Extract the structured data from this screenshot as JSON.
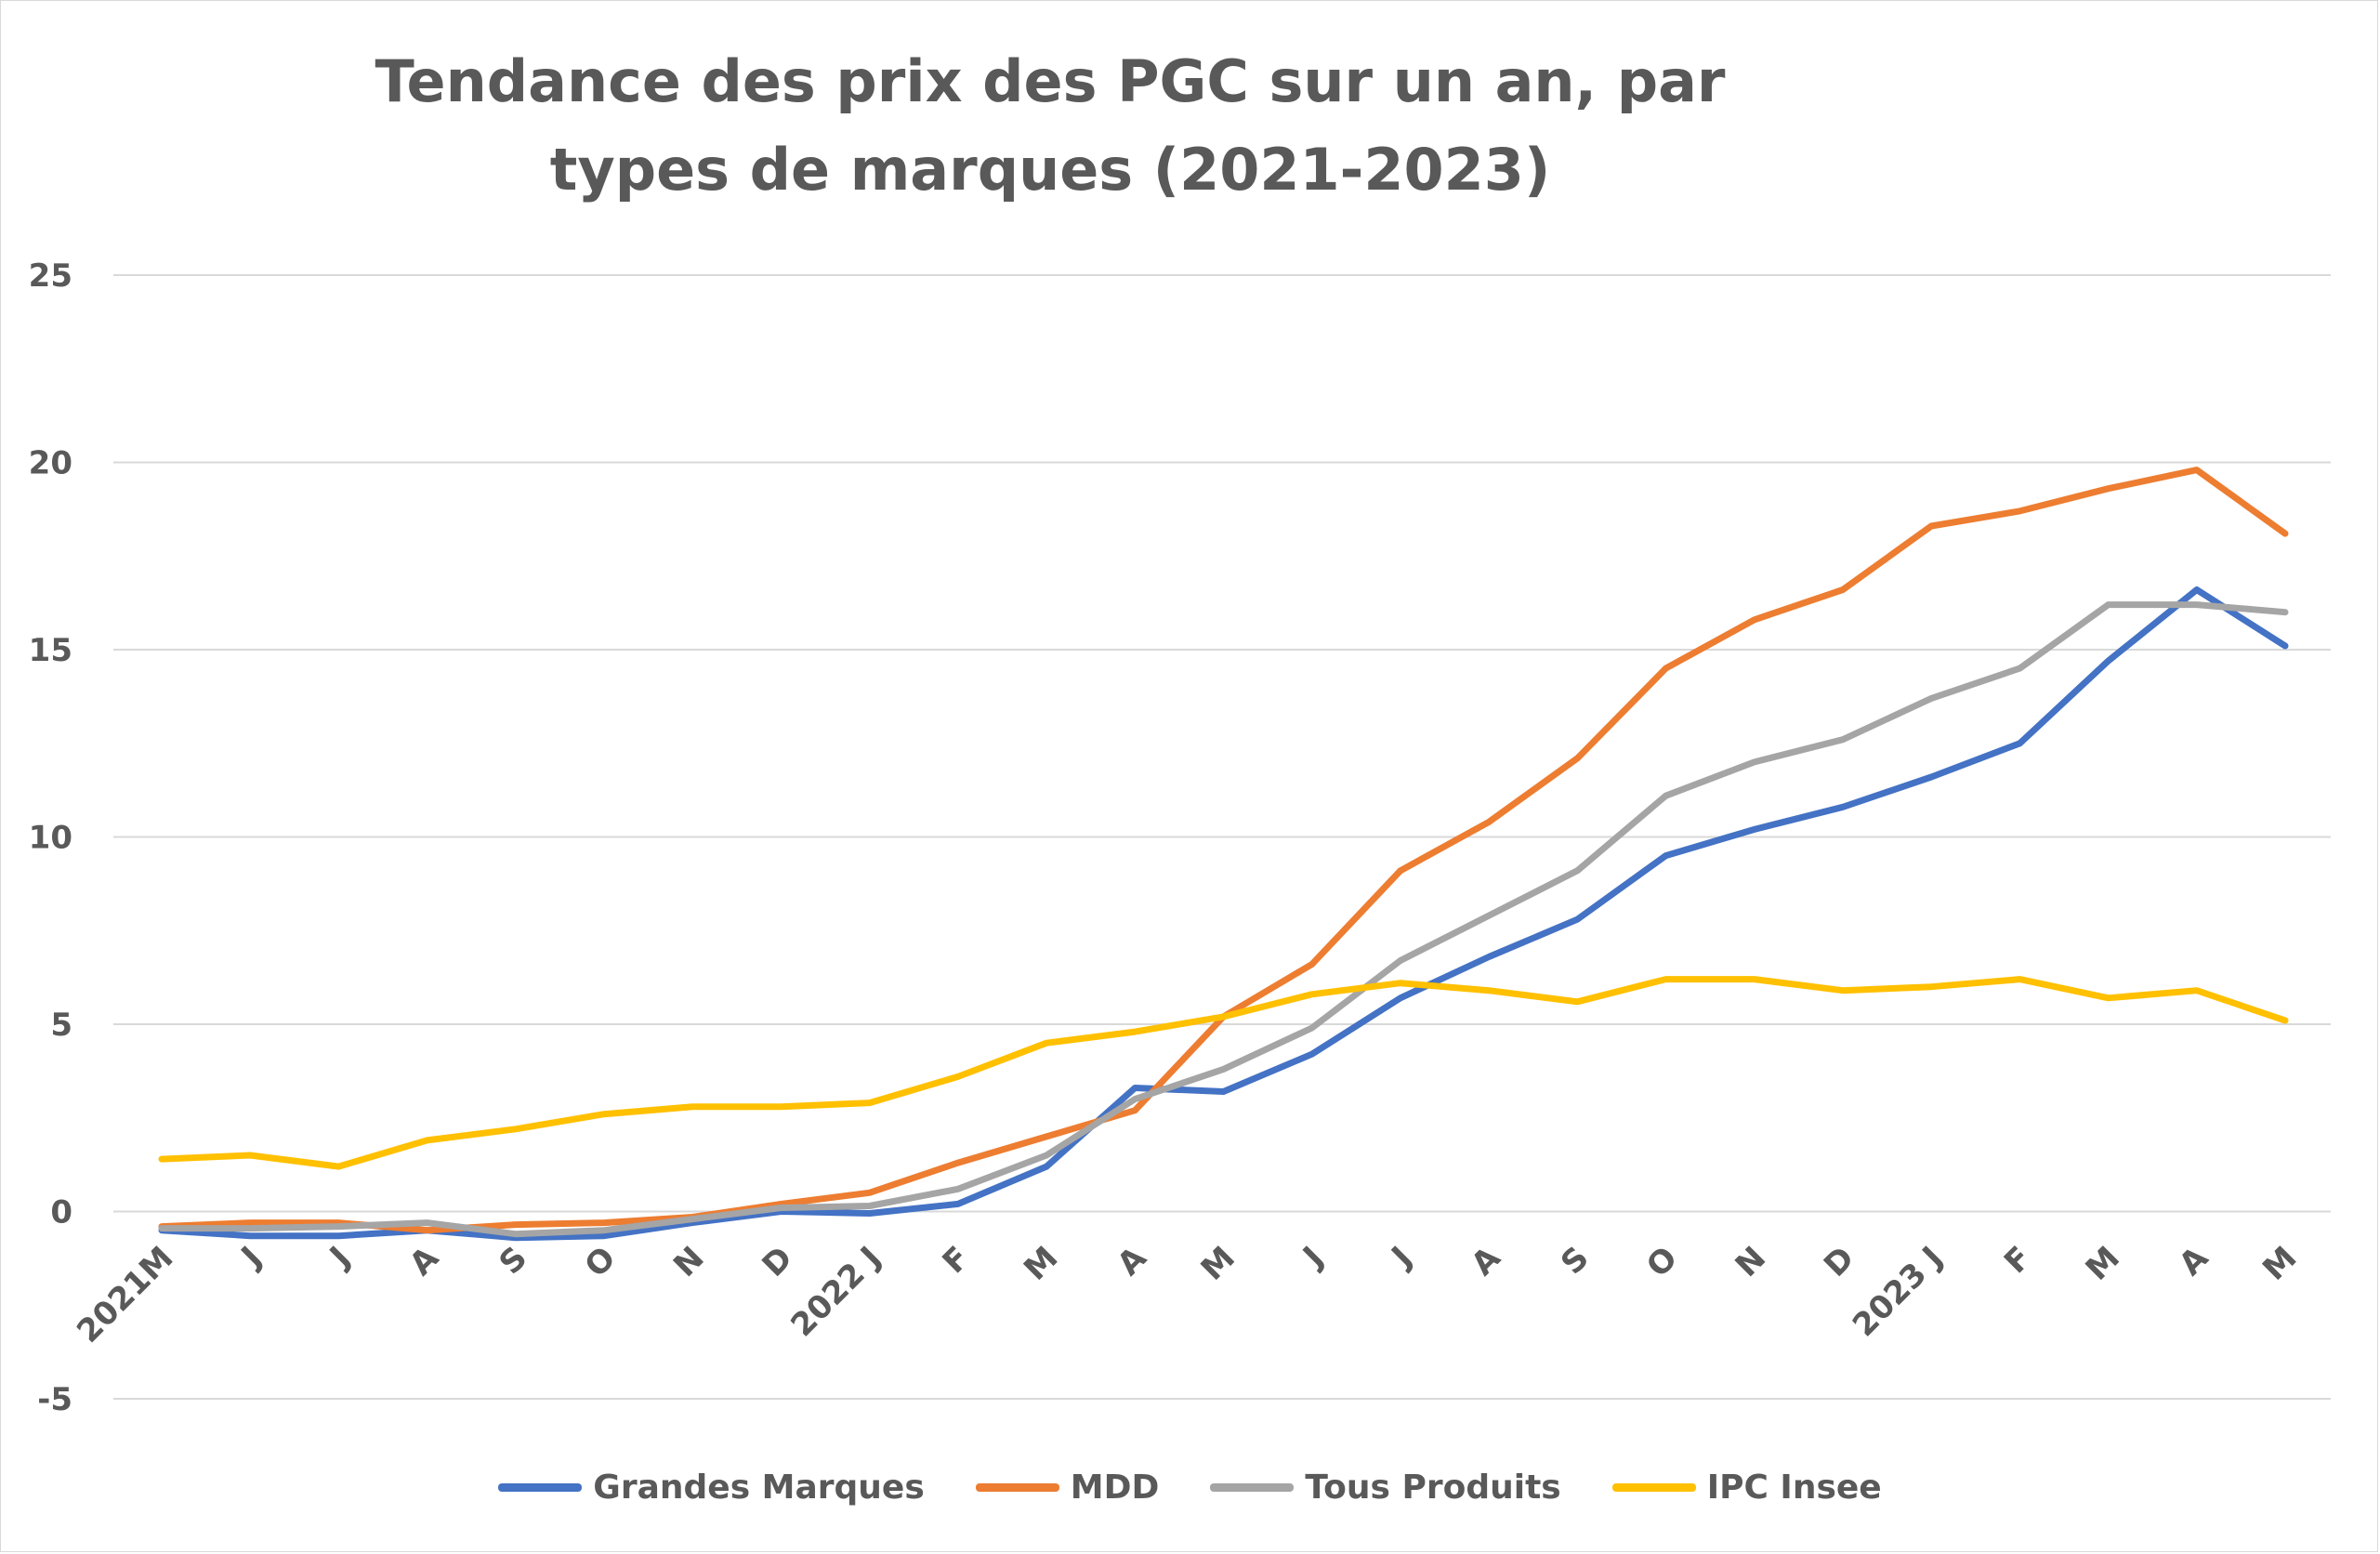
{
  "chart_data": {
    "type": "line",
    "title": "Tendance des prix des PGC sur un an, par types de marques (2021-2023)",
    "xlabel": "",
    "ylabel": "",
    "ylim": [
      -5,
      25
    ],
    "yticks": [
      "25",
      "20",
      "15",
      "10",
      "5",
      "0",
      "-5"
    ],
    "ytick_values": [
      25,
      20,
      15,
      10,
      5,
      0,
      -5
    ],
    "categories": [
      "2021M",
      "J",
      "J",
      "A",
      "S",
      "O",
      "N",
      "D",
      "2022 J",
      "F",
      "M",
      "A",
      "M",
      "J",
      "J",
      "A",
      "S",
      "O",
      "N",
      "D",
      "2023 J",
      "F",
      "M",
      "A",
      "M"
    ],
    "grid": true,
    "legend_position": "bottom",
    "series": [
      {
        "name": "Grandes Marques",
        "color": "#4472C4",
        "values": [
          -0.5,
          -0.65,
          -0.65,
          -0.5,
          -0.7,
          -0.65,
          -0.3,
          0.0,
          -0.05,
          0.2,
          1.2,
          3.3,
          3.2,
          4.2,
          5.7,
          6.8,
          7.8,
          9.5,
          10.2,
          10.8,
          11.6,
          12.5,
          14.7,
          16.6,
          15.1
        ]
      },
      {
        "name": "MDD",
        "color": "#ED7D31",
        "values": [
          -0.4,
          -0.3,
          -0.3,
          -0.5,
          -0.35,
          -0.3,
          -0.15,
          0.2,
          0.5,
          1.3,
          2.0,
          2.7,
          5.2,
          6.6,
          9.1,
          10.4,
          12.1,
          14.5,
          15.8,
          16.6,
          18.3,
          18.7,
          19.3,
          19.8,
          18.1
        ]
      },
      {
        "name": "Tous Produits",
        "color": "#A5A5A5",
        "values": [
          -0.45,
          -0.45,
          -0.4,
          -0.3,
          -0.6,
          -0.5,
          -0.2,
          0.1,
          0.15,
          0.6,
          1.5,
          3.0,
          3.8,
          4.9,
          6.7,
          7.9,
          9.1,
          11.1,
          12.0,
          12.6,
          13.7,
          14.5,
          16.2,
          16.2,
          16.0
        ]
      },
      {
        "name": "IPC Insee",
        "color": "#FFC000",
        "values": [
          1.4,
          1.5,
          1.2,
          1.9,
          2.2,
          2.6,
          2.8,
          2.8,
          2.9,
          3.6,
          4.5,
          4.8,
          5.2,
          5.8,
          6.1,
          5.9,
          5.6,
          6.2,
          6.2,
          5.9,
          6.0,
          6.2,
          5.7,
          5.9,
          5.1
        ]
      }
    ]
  }
}
